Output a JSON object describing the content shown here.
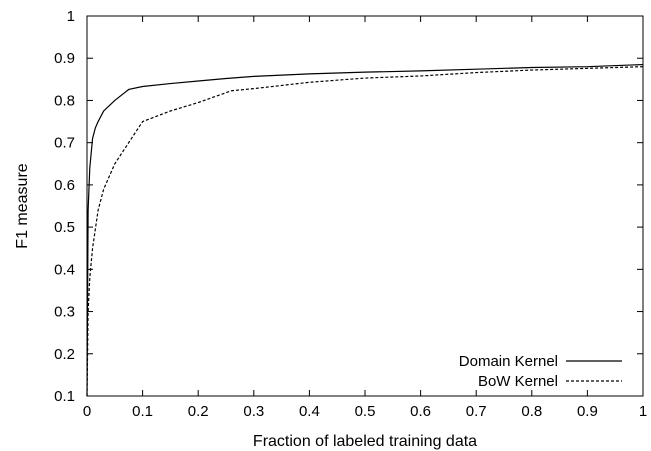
{
  "chart_data": {
    "type": "line",
    "xlabel": "Fraction of labeled training data",
    "ylabel": "F1 measure",
    "xlim": [
      0,
      1
    ],
    "ylim": [
      0.1,
      1
    ],
    "x_ticks": [
      "0",
      "0.1",
      "0.2",
      "0.3",
      "0.4",
      "0.5",
      "0.6",
      "0.7",
      "0.8",
      "0.9",
      "1"
    ],
    "y_ticks": [
      "0.1",
      "0.2",
      "0.3",
      "0.4",
      "0.5",
      "0.6",
      "0.7",
      "0.8",
      "0.9",
      "1"
    ],
    "legend_placement": "bottom-right",
    "grid": false,
    "series": [
      {
        "name": "Domain Kernel",
        "style": "solid",
        "color": "#000000",
        "points": [
          [
            0.0,
            0.1
          ],
          [
            0.002,
            0.54
          ],
          [
            0.005,
            0.64
          ],
          [
            0.01,
            0.71
          ],
          [
            0.015,
            0.735
          ],
          [
            0.02,
            0.75
          ],
          [
            0.03,
            0.775
          ],
          [
            0.05,
            0.8
          ],
          [
            0.075,
            0.826
          ],
          [
            0.1,
            0.833
          ],
          [
            0.15,
            0.84
          ],
          [
            0.2,
            0.846
          ],
          [
            0.25,
            0.852
          ],
          [
            0.3,
            0.857
          ],
          [
            0.4,
            0.863
          ],
          [
            0.5,
            0.867
          ],
          [
            0.6,
            0.87
          ],
          [
            0.7,
            0.874
          ],
          [
            0.8,
            0.878
          ],
          [
            0.9,
            0.88
          ],
          [
            1.0,
            0.885
          ]
        ]
      },
      {
        "name": "BoW Kernel",
        "style": "dashed",
        "color": "#000000",
        "points": [
          [
            0.0,
            0.1
          ],
          [
            0.002,
            0.3
          ],
          [
            0.005,
            0.38
          ],
          [
            0.01,
            0.45
          ],
          [
            0.02,
            0.54
          ],
          [
            0.03,
            0.59
          ],
          [
            0.05,
            0.65
          ],
          [
            0.075,
            0.7
          ],
          [
            0.1,
            0.75
          ],
          [
            0.15,
            0.775
          ],
          [
            0.2,
            0.795
          ],
          [
            0.26,
            0.823
          ],
          [
            0.3,
            0.828
          ],
          [
            0.4,
            0.843
          ],
          [
            0.5,
            0.853
          ],
          [
            0.6,
            0.858
          ],
          [
            0.7,
            0.866
          ],
          [
            0.8,
            0.872
          ],
          [
            0.9,
            0.876
          ],
          [
            1.0,
            0.88
          ]
        ]
      }
    ]
  }
}
